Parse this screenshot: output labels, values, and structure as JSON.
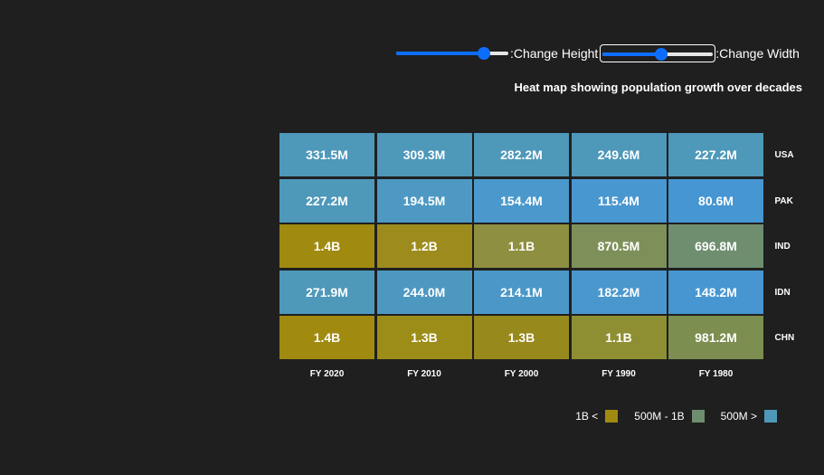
{
  "controls": {
    "height_label": ":Change Height",
    "width_label": ":Change Width",
    "height_value": 0.78,
    "width_value": 0.52
  },
  "chart_data": {
    "type": "heatmap",
    "title": "Heat map showing population growth over decades",
    "columns": [
      "FY 2020",
      "FY 2010",
      "FY 2000",
      "FY 1990",
      "FY 1980"
    ],
    "rows": [
      "USA",
      "PAK",
      "IND",
      "IDN",
      "CHN"
    ],
    "values": [
      [
        331.5,
        309.3,
        282.2,
        249.6,
        227.2
      ],
      [
        227.2,
        194.5,
        154.4,
        115.4,
        80.6
      ],
      [
        1400,
        1200,
        1100,
        870.5,
        696.8
      ],
      [
        271.9,
        244.0,
        214.1,
        182.2,
        148.2
      ],
      [
        1400,
        1300,
        1300,
        1100,
        981.2
      ]
    ],
    "labels": [
      [
        "331.5M",
        "309.3M",
        "282.2M",
        "249.6M",
        "227.2M"
      ],
      [
        "227.2M",
        "194.5M",
        "154.4M",
        "115.4M",
        "80.6M"
      ],
      [
        "1.4B",
        "1.2B",
        "1.1B",
        "870.5M",
        "696.8M"
      ],
      [
        "271.9M",
        "244.0M",
        "214.1M",
        "182.2M",
        "148.2M"
      ],
      [
        "1.4B",
        "1.3B",
        "1.3B",
        "1.1B",
        "981.2M"
      ]
    ],
    "colors": [
      [
        "#4e98ba",
        "#4e98ba",
        "#4e98ba",
        "#4e98ba",
        "#4e98ba"
      ],
      [
        "#4e98ba",
        "#4d99c3",
        "#4b99cc",
        "#4997d0",
        "#4596d2"
      ],
      [
        "#a08a10",
        "#9d8c1d",
        "#8e8f40",
        "#7e905a",
        "#6f8e6f"
      ],
      [
        "#4e98ba",
        "#4d98c1",
        "#4b98c8",
        "#4a97cd",
        "#4796d1"
      ],
      [
        "#a08a10",
        "#9c8c18",
        "#98891d",
        "#8e8f33",
        "#7c8e50"
      ]
    ],
    "legend": [
      {
        "label": "1B <",
        "color": "#a08a10"
      },
      {
        "label": "500M - 1B",
        "color": "#6f8e6f"
      },
      {
        "label": "500M >",
        "color": "#4e98ba"
      }
    ]
  }
}
